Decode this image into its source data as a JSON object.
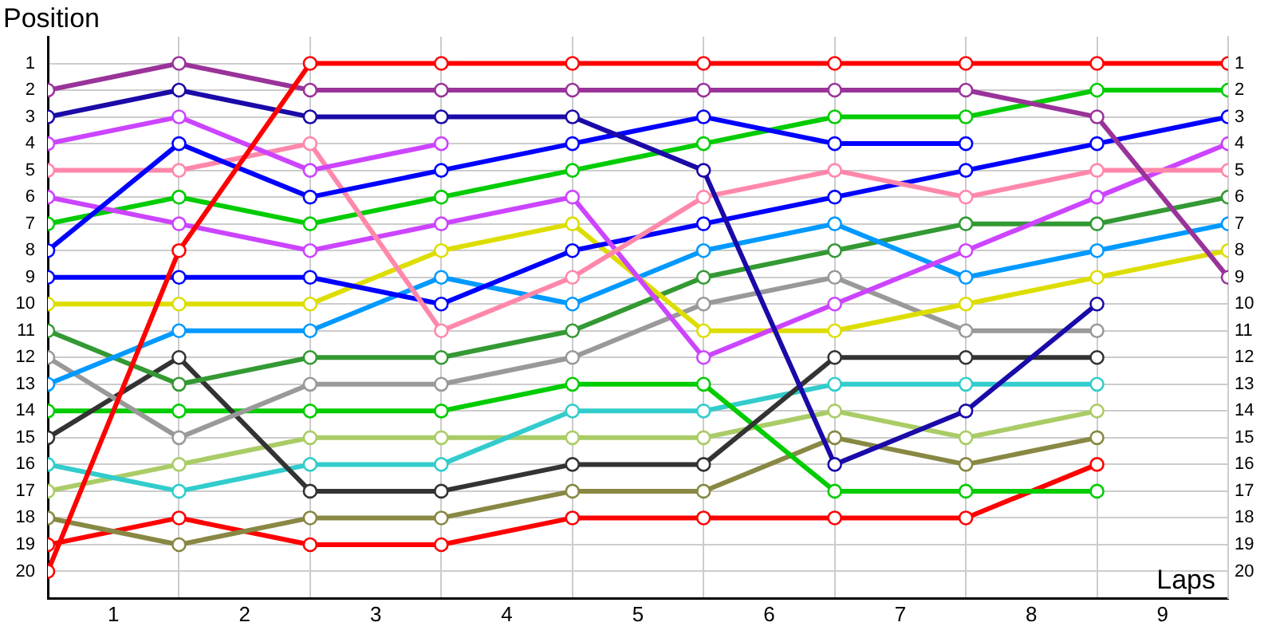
{
  "chart_data": {
    "type": "line",
    "xlabel": "Laps",
    "ylabel": "Position",
    "x": [
      0,
      1,
      2,
      3,
      4,
      5,
      6,
      7,
      8,
      9
    ],
    "xlim": [
      0,
      9
    ],
    "xticks": [
      {
        "value": 0,
        "label": null
      },
      {
        "value": 0.5,
        "label": "1"
      },
      {
        "value": 1,
        "label": null
      },
      {
        "value": 1.5,
        "label": "2"
      },
      {
        "value": 2,
        "label": null
      },
      {
        "value": 2.5,
        "label": "3"
      },
      {
        "value": 3,
        "label": null
      },
      {
        "value": 3.5,
        "label": "4"
      },
      {
        "value": 4,
        "label": null
      },
      {
        "value": 4.5,
        "label": "5"
      },
      {
        "value": 5,
        "label": null
      },
      {
        "value": 5.5,
        "label": "6"
      },
      {
        "value": 6,
        "label": null
      },
      {
        "value": 6.5,
        "label": "7"
      },
      {
        "value": 7,
        "label": null
      },
      {
        "value": 7.5,
        "label": "8"
      },
      {
        "value": 8,
        "label": null
      },
      {
        "value": 8.5,
        "label": "9"
      },
      {
        "value": 9,
        "label": null
      }
    ],
    "ylim": [
      21,
      0
    ],
    "yticks": [
      1,
      2,
      3,
      4,
      5,
      6,
      7,
      8,
      9,
      10,
      11,
      12,
      13,
      14,
      15,
      16,
      17,
      18,
      19,
      20
    ],
    "y2lim": [
      21,
      0
    ],
    "y2ticks": [
      1,
      2,
      3,
      4,
      5,
      6,
      7,
      8,
      9,
      10,
      11,
      12,
      13,
      14,
      15,
      16,
      17,
      18,
      19,
      20
    ],
    "grid": true,
    "legend": false,
    "marker": "circle",
    "line_style": "solid",
    "series": [
      {
        "color": "#ff0000",
        "values": [
          20,
          8,
          1,
          1,
          1,
          1,
          1,
          1,
          1,
          1
        ]
      },
      {
        "color": "#993399",
        "values": [
          2,
          1,
          2,
          2,
          2,
          2,
          2,
          2,
          3,
          9
        ]
      },
      {
        "color": "#1a0aa8",
        "values": [
          3,
          2,
          3,
          3,
          3,
          5,
          16,
          14,
          10,
          null
        ]
      },
      {
        "color": "#cc44ff",
        "values": [
          4,
          3,
          5,
          4,
          null,
          null,
          null,
          null,
          null,
          null
        ]
      },
      {
        "color": "#0000ff",
        "values": [
          8,
          4,
          6,
          5,
          4,
          3,
          4,
          4,
          null,
          null
        ]
      },
      {
        "color": "#ff88aa",
        "values": [
          5,
          5,
          4,
          11,
          9,
          6,
          5,
          6,
          5,
          5
        ]
      },
      {
        "color": "#cc44ff",
        "values": [
          6,
          7,
          8,
          7,
          6,
          12,
          10,
          8,
          6,
          4
        ]
      },
      {
        "color": "#00cc00",
        "values": [
          7,
          6,
          7,
          6,
          5,
          4,
          3,
          3,
          2,
          2
        ]
      },
      {
        "color": "#0000ff",
        "values": [
          9,
          9,
          9,
          10,
          8,
          7,
          6,
          5,
          4,
          3
        ]
      },
      {
        "color": "#dddd00",
        "values": [
          10,
          10,
          10,
          8,
          7,
          11,
          11,
          10,
          9,
          8
        ]
      },
      {
        "color": "#0099ff",
        "values": [
          13,
          11,
          11,
          9,
          10,
          8,
          7,
          9,
          8,
          7
        ]
      },
      {
        "color": "#339933",
        "values": [
          11,
          13,
          12,
          12,
          11,
          9,
          8,
          7,
          7,
          6
        ]
      },
      {
        "color": "#999999",
        "values": [
          12,
          15,
          13,
          13,
          12,
          10,
          9,
          11,
          11,
          null
        ]
      },
      {
        "color": "#333333",
        "values": [
          15,
          12,
          17,
          17,
          16,
          16,
          12,
          12,
          12,
          null
        ]
      },
      {
        "color": "#00cc00",
        "values": [
          14,
          14,
          14,
          14,
          13,
          13,
          17,
          17,
          17,
          null
        ]
      },
      {
        "color": "#33cccc",
        "values": [
          16,
          17,
          16,
          16,
          14,
          14,
          13,
          13,
          13,
          null
        ]
      },
      {
        "color": "#aacc66",
        "values": [
          17,
          16,
          15,
          15,
          15,
          15,
          14,
          15,
          14,
          null
        ]
      },
      {
        "color": "#888844",
        "values": [
          18,
          19,
          18,
          18,
          17,
          17,
          15,
          16,
          15,
          null
        ]
      },
      {
        "color": "#ff0000",
        "values": [
          19,
          18,
          19,
          19,
          18,
          18,
          18,
          18,
          16,
          null
        ]
      }
    ]
  }
}
